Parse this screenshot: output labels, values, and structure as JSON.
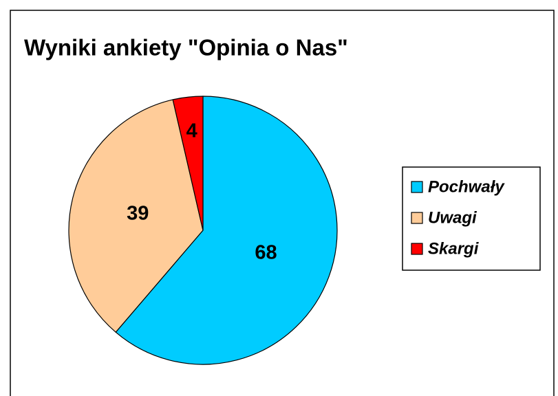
{
  "chart_data": {
    "type": "pie",
    "title": "Wyniki ankiety \"Opinia o Nas\"",
    "categories": [
      "Pochwały",
      "Uwagi",
      "Skargi"
    ],
    "values": [
      68,
      39,
      4
    ],
    "colors": [
      "#00ccff",
      "#ffcc99",
      "#ff0000"
    ]
  }
}
